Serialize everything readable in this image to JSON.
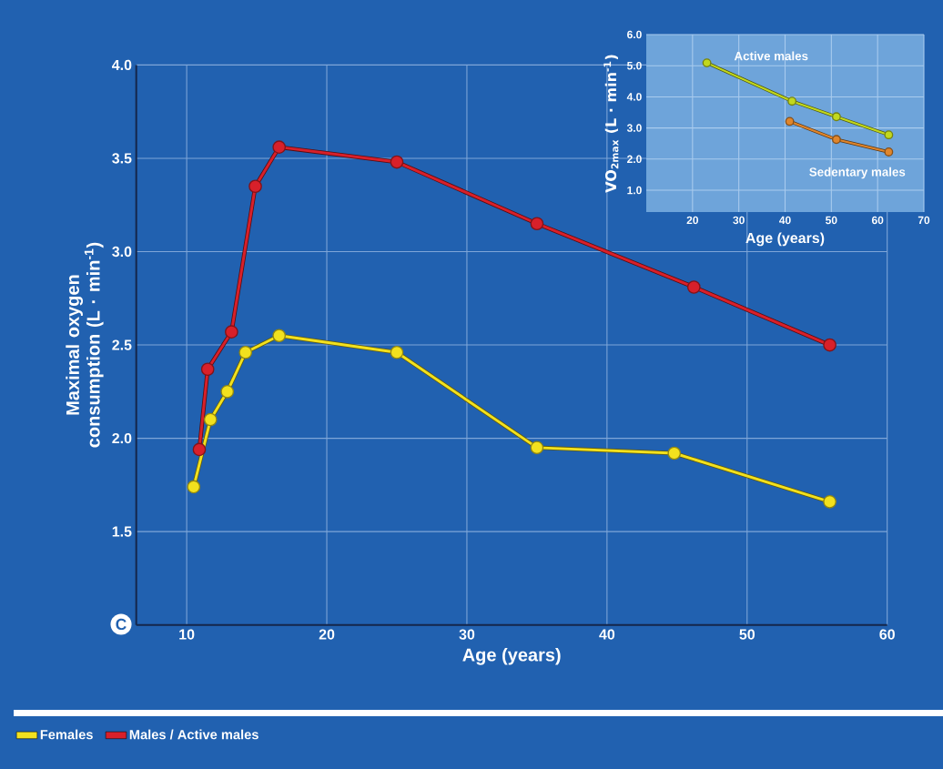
{
  "chart_data": [
    {
      "type": "line",
      "xlabel": "Age (years)",
      "ylabel": "Maximal oxygen consumption (L · min$^{-1}$)",
      "xlim": [
        6.4,
        60
      ],
      "ylim": [
        1.0,
        4.0
      ],
      "xticks": [
        10,
        20,
        30,
        40,
        50,
        60
      ],
      "yticks": [
        {
          "value": 1.5,
          "label": "1.5"
        },
        {
          "value": 2.0,
          "label": "2.0"
        },
        {
          "value": 2.5,
          "label": "2.5"
        },
        {
          "value": 3.0,
          "label": "3.0"
        },
        {
          "value": 3.5,
          "label": "3.5"
        },
        {
          "value": 4.0,
          "label": "4.0"
        }
      ],
      "grid": true,
      "legend": "bottom",
      "marker": "circle",
      "line_style": "solid",
      "annotations": [
        "C"
      ],
      "series": [
        {
          "name": "Females",
          "color": "#f2e11e",
          "x": [
            10.5,
            11.7,
            12.9,
            14.2,
            16.6,
            25,
            35,
            44.8,
            55.9
          ],
          "values": [
            1.74,
            2.1,
            2.25,
            2.46,
            2.55,
            2.46,
            1.95,
            1.92,
            1.66
          ]
        },
        {
          "name": "Males / Active males",
          "color": "#d8202a",
          "x": [
            10.9,
            11.5,
            13.2,
            14.9,
            16.6,
            25,
            35,
            46.2,
            55.9
          ],
          "values": [
            1.94,
            2.37,
            2.57,
            3.35,
            3.56,
            3.48,
            3.15,
            2.81,
            2.5
          ]
        }
      ]
    },
    {
      "type": "line",
      "xlabel": "Age (years)",
      "ylabel": "VO$_{2max}$ (L · min$^{-1}$)",
      "xlim": [
        10,
        70
      ],
      "ylim": [
        0.3,
        6.0
      ],
      "xticks": [
        20,
        30,
        40,
        50,
        60,
        70
      ],
      "yticks": [
        {
          "value": 1.0,
          "label": "1.0"
        },
        {
          "value": 2.0,
          "label": "2.0"
        },
        {
          "value": 3.0,
          "label": "3.0"
        },
        {
          "value": 4.0,
          "label": "4.0"
        },
        {
          "value": 5.0,
          "label": "5.0"
        },
        {
          "value": 6.0,
          "label": "6.0"
        }
      ],
      "grid": true,
      "marker": "circle",
      "line_style": "solid",
      "series": [
        {
          "name": "Active males",
          "color": "#c2d81e",
          "x": [
            23.1,
            41.5,
            51.1,
            62.4
          ],
          "values": [
            5.09,
            3.86,
            3.36,
            2.78
          ]
        },
        {
          "name": "Sedentary males",
          "color": "#e0862c",
          "x": [
            41.0,
            51.1,
            62.4
          ],
          "values": [
            3.21,
            2.63,
            2.23
          ]
        }
      ]
    }
  ]
}
